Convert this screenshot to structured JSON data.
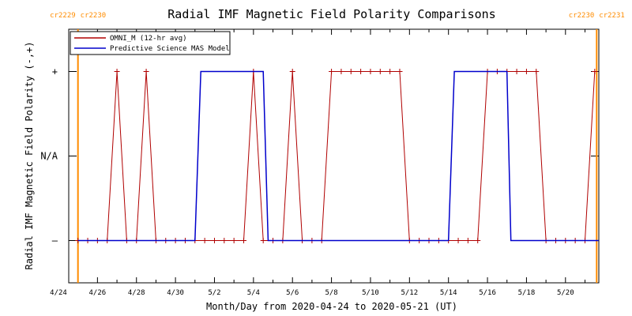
{
  "chart_data": {
    "type": "line",
    "title": "Radial IMF Magnetic Field Polarity Comparisons",
    "xlabel": "Month/Day from 2020-04-24 to 2020-05-21 (UT)",
    "ylabel": "Radial IMF Magnetic Field Polarity (-,+)",
    "xlim": [
      0,
      27.75
    ],
    "ylim": [
      -1.5,
      1.5
    ],
    "x_ticks": [
      {
        "value": 0,
        "label": "4/24"
      },
      {
        "value": 2,
        "label": "4/26"
      },
      {
        "value": 4,
        "label": "4/28"
      },
      {
        "value": 6,
        "label": "4/30"
      },
      {
        "value": 8,
        "label": "5/2"
      },
      {
        "value": 10,
        "label": "5/4"
      },
      {
        "value": 12,
        "label": "5/6"
      },
      {
        "value": 14,
        "label": "5/8"
      },
      {
        "value": 16,
        "label": "5/10"
      },
      {
        "value": 18,
        "label": "5/12"
      },
      {
        "value": 20,
        "label": "5/14"
      },
      {
        "value": 22,
        "label": "5/16"
      },
      {
        "value": 24,
        "label": "5/18"
      },
      {
        "value": 26,
        "label": "5/20"
      }
    ],
    "y_ticks": [
      {
        "value": 1,
        "label": "+"
      },
      {
        "value": 0,
        "label": "N/A"
      },
      {
        "value": -1,
        "label": "–"
      }
    ],
    "carrington_markers": [
      {
        "x": 1.0,
        "left_label": "cr2229",
        "right_label": "cr2230",
        "color": "#ff8c00"
      },
      {
        "x": 27.6,
        "left_label": "cr2230",
        "right_label": "cr2231",
        "color": "#ff8c00"
      }
    ],
    "legend": {
      "placement": "top-left"
    },
    "series": [
      {
        "name": "OMNI_M (12-hr avg)",
        "color": "#b00000",
        "marker": "plus",
        "x": [
          1.0,
          1.5,
          2.0,
          2.5,
          3.0,
          3.5,
          4.0,
          4.5,
          5.0,
          5.5,
          6.0,
          6.5,
          7.0,
          7.5,
          8.0,
          8.5,
          9.0,
          9.5,
          10.0,
          10.5,
          11.0,
          11.5,
          12.0,
          12.5,
          13.0,
          13.5,
          14.0,
          14.5,
          15.0,
          15.5,
          16.0,
          16.5,
          17.0,
          17.5,
          18.0,
          18.5,
          19.0,
          19.5,
          20.0,
          20.5,
          21.0,
          21.5,
          22.0,
          22.5,
          23.0,
          23.5,
          24.0,
          24.5,
          25.0,
          25.5,
          26.0,
          26.5,
          27.0,
          27.5
        ],
        "y": [
          -1,
          -1,
          -1,
          -1,
          1,
          -1,
          -1,
          1,
          -1,
          -1,
          -1,
          -1,
          -1,
          -1,
          -1,
          -1,
          -1,
          -1,
          1,
          -1,
          -1,
          -1,
          1,
          -1,
          -1,
          -1,
          1,
          1,
          1,
          1,
          1,
          1,
          1,
          1,
          -1,
          -1,
          -1,
          -1,
          -1,
          -1,
          -1,
          -1,
          1,
          1,
          1,
          1,
          1,
          1,
          -1,
          -1,
          -1,
          -1,
          -1,
          1
        ]
      },
      {
        "name": "Predictive Science MAS Model",
        "color": "#0000cc",
        "marker": "none",
        "x": [
          1.0,
          7.0,
          7.3,
          10.5,
          10.75,
          20.0,
          20.3,
          23.0,
          23.2,
          27.7
        ],
        "y": [
          -1,
          -1,
          1,
          1,
          -1,
          -1,
          1,
          1,
          -1,
          -1
        ]
      }
    ]
  }
}
